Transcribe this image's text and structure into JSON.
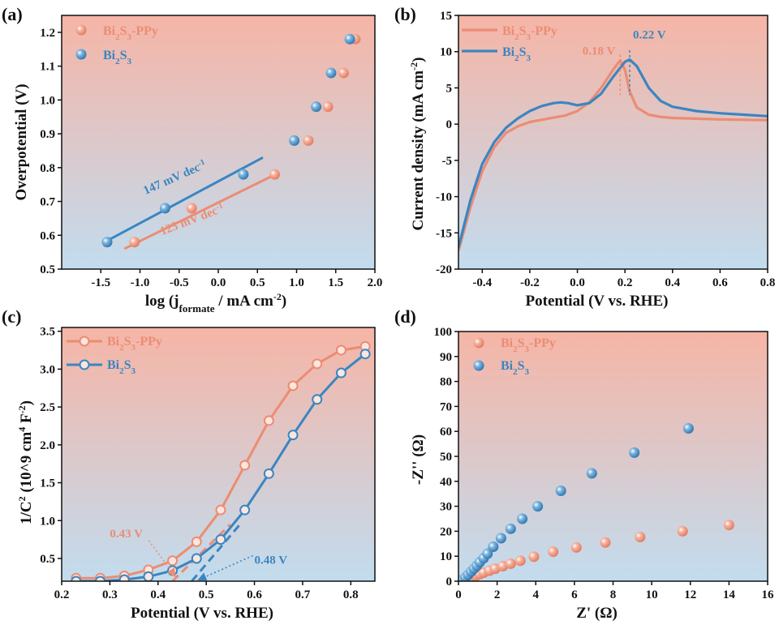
{
  "colors": {
    "orange": "#ec8c73",
    "blue": "#3a86c2",
    "bgTop": "#f6b7a8",
    "bgBottom": "#c3dcee"
  },
  "chart_data": [
    {
      "id": "a",
      "label": "(a)",
      "type": "scatter",
      "xlabel": "log (j",
      "xlabel_sub": "formate",
      "xlabel_tail": " / mA cm",
      "xlabel_sup": "-2",
      "xlabel_end": ")",
      "ylabel": "Overpotential (V)",
      "xlim": [
        -2.0,
        2.0
      ],
      "ylim": [
        0.5,
        1.25
      ],
      "xticks": [
        "-1.5",
        "-1.0",
        "-0.5",
        "0.0",
        "0.5",
        "1.0",
        "1.5",
        "2.0"
      ],
      "yticks": [
        "0.5",
        "0.6",
        "0.7",
        "0.8",
        "0.9",
        "1.0",
        "1.1",
        "1.2"
      ],
      "legend": [
        {
          "base": "Bi",
          "s1": "2",
          "mid": "S",
          "s2": "3",
          "tail": "-PPy"
        },
        {
          "base": "Bi",
          "s1": "2",
          "mid": "S",
          "s2": "3",
          "tail": ""
        }
      ],
      "series": [
        {
          "name": "Bi2S3-PPy",
          "color": "orange",
          "x": [
            -1.07,
            -0.34,
            0.72,
            1.15,
            1.4,
            1.6,
            1.75
          ],
          "y": [
            0.58,
            0.68,
            0.78,
            0.88,
            0.98,
            1.08,
            1.18
          ]
        },
        {
          "name": "Bi2S3",
          "color": "blue",
          "x": [
            -1.42,
            -0.68,
            0.32,
            0.97,
            1.25,
            1.44,
            1.68
          ],
          "y": [
            0.58,
            0.68,
            0.78,
            0.88,
            0.98,
            1.08,
            1.18
          ]
        }
      ],
      "fits": [
        {
          "color": "orange",
          "x": [
            -1.2,
            0.73
          ],
          "y": [
            0.56,
            0.78
          ]
        },
        {
          "color": "blue",
          "x": [
            -1.45,
            0.57
          ],
          "y": [
            0.58,
            0.83
          ]
        }
      ],
      "annotations": [
        {
          "text": "147 mV dec",
          "sup": "-1",
          "color": "blue",
          "x": -0.93,
          "y": 0.72,
          "angle": -24
        },
        {
          "text": "123 mV dec",
          "sup": "-1",
          "color": "orange",
          "x": -0.72,
          "y": 0.6,
          "angle": -21
        }
      ]
    },
    {
      "id": "b",
      "label": "(b)",
      "type": "line",
      "xlabel": "Potential (V vs. RHE)",
      "ylabel": "Current density (mA cm",
      "ylabel_sup": "-2",
      "ylabel_end": ")",
      "xlim": [
        -0.5,
        0.8
      ],
      "ylim": [
        -20,
        15
      ],
      "xticks": [
        "-0.4",
        "-0.2",
        "0.0",
        "0.2",
        "0.4",
        "0.6",
        "0.8"
      ],
      "yticks": [
        "-20",
        "-15",
        "-10",
        "-5",
        "0",
        "5",
        "10",
        "15"
      ],
      "legend": [
        {
          "base": "Bi",
          "s1": "2",
          "mid": "S",
          "s2": "3",
          "tail": "-PPy"
        },
        {
          "base": "Bi",
          "s1": "2",
          "mid": "S",
          "s2": "3",
          "tail": ""
        }
      ],
      "series": [
        {
          "name": "Bi2S3-PPy",
          "color": "orange",
          "x": [
            -0.5,
            -0.45,
            -0.4,
            -0.35,
            -0.3,
            -0.25,
            -0.2,
            -0.15,
            -0.1,
            -0.05,
            0.0,
            0.05,
            0.1,
            0.15,
            0.18,
            0.2,
            0.22,
            0.25,
            0.3,
            0.35,
            0.4,
            0.5,
            0.6,
            0.7,
            0.8
          ],
          "y": [
            -17.5,
            -11.5,
            -6.5,
            -3.2,
            -1.2,
            -0.3,
            0.3,
            0.6,
            0.9,
            1.2,
            1.8,
            3.0,
            5.0,
            7.5,
            8.8,
            7.5,
            4.5,
            2.3,
            1.3,
            1.0,
            0.85,
            0.75,
            0.65,
            0.6,
            0.55
          ]
        },
        {
          "name": "Bi2S3",
          "color": "blue",
          "x": [
            -0.5,
            -0.45,
            -0.4,
            -0.35,
            -0.3,
            -0.25,
            -0.2,
            -0.15,
            -0.1,
            -0.07,
            -0.04,
            0.0,
            0.05,
            0.1,
            0.15,
            0.2,
            0.22,
            0.25,
            0.3,
            0.35,
            0.4,
            0.5,
            0.6,
            0.7,
            0.8
          ],
          "y": [
            -17.0,
            -10.5,
            -5.5,
            -2.5,
            -0.5,
            0.8,
            1.8,
            2.5,
            2.9,
            3.0,
            2.9,
            2.6,
            2.9,
            4.2,
            6.5,
            8.6,
            8.9,
            8.0,
            5.0,
            3.2,
            2.4,
            1.8,
            1.5,
            1.3,
            1.1
          ]
        }
      ],
      "annotations": [
        {
          "text": "0.18 V",
          "color": "orange",
          "x": 0.18
        },
        {
          "text": "0.22 V",
          "color": "blue",
          "x": 0.22
        }
      ]
    },
    {
      "id": "c",
      "label": "(c)",
      "type": "line",
      "xlabel": "Potential (V vs. RHE)",
      "ylabel": "1/C",
      "ylabel_sup": "2",
      "ylabel_mid": " (10^9 cm",
      "ylabel_sup2": "4",
      "ylabel_mid2": " F",
      "ylabel_sup3": "-2",
      "ylabel_end": ")",
      "xlim": [
        0.2,
        0.85
      ],
      "ylim": [
        0.2,
        3.55
      ],
      "xticks": [
        "0.2",
        "0.3",
        "0.4",
        "0.5",
        "0.6",
        "0.7",
        "0.8"
      ],
      "yticks": [
        "0.5",
        "1.0",
        "1.5",
        "2.0",
        "2.5",
        "3.0",
        "3.5"
      ],
      "legend": [
        {
          "base": "Bi",
          "s1": "2",
          "mid": "S",
          "s2": "3",
          "tail": "-PPy"
        },
        {
          "base": "Bi",
          "s1": "2",
          "mid": "S",
          "s2": "3",
          "tail": ""
        }
      ],
      "series": [
        {
          "name": "Bi2S3-PPy",
          "color": "orange",
          "x": [
            0.23,
            0.28,
            0.33,
            0.38,
            0.43,
            0.48,
            0.53,
            0.58,
            0.63,
            0.68,
            0.73,
            0.78,
            0.83
          ],
          "y": [
            0.24,
            0.24,
            0.27,
            0.35,
            0.47,
            0.72,
            1.14,
            1.73,
            2.32,
            2.78,
            3.07,
            3.25,
            3.3
          ]
        },
        {
          "name": "Bi2S3",
          "color": "blue",
          "x": [
            0.23,
            0.28,
            0.33,
            0.38,
            0.43,
            0.48,
            0.53,
            0.58,
            0.63,
            0.68,
            0.73,
            0.78,
            0.83
          ],
          "y": [
            0.2,
            0.2,
            0.22,
            0.26,
            0.34,
            0.5,
            0.75,
            1.14,
            1.62,
            2.13,
            2.6,
            2.95,
            3.2
          ]
        }
      ],
      "fits": [
        {
          "color": "orange",
          "x": [
            0.43,
            0.55
          ],
          "y": [
            0.2,
            0.95
          ],
          "dashed": true
        },
        {
          "color": "blue",
          "x": [
            0.47,
            0.57
          ],
          "y": [
            0.2,
            0.95
          ],
          "dashed": true
        }
      ],
      "annotations": [
        {
          "text": "0.43 V",
          "color": "orange",
          "x": 0.3,
          "y": 0.78,
          "tx": 0.43,
          "ty": 0.27
        },
        {
          "text": "0.48 V",
          "color": "blue",
          "x": 0.6,
          "y": 0.43,
          "tx": 0.48,
          "ty": 0.22
        }
      ]
    },
    {
      "id": "d",
      "label": "(d)",
      "type": "scatter",
      "xlabel": "Z' (Ω)",
      "ylabel": "-Z'' (Ω)",
      "xlim": [
        0,
        16
      ],
      "ylim": [
        0,
        100
      ],
      "xticks": [
        "0",
        "2",
        "4",
        "6",
        "8",
        "10",
        "12",
        "14",
        "16"
      ],
      "yticks": [
        "0",
        "10",
        "20",
        "30",
        "40",
        "50",
        "60",
        "70",
        "80",
        "90",
        "100"
      ],
      "legend": [
        {
          "base": "Bi",
          "s1": "2",
          "mid": "S",
          "s2": "3",
          "tail": "-PPy"
        },
        {
          "base": "Bi",
          "s1": "2",
          "mid": "S",
          "s2": "3",
          "tail": ""
        }
      ],
      "series": [
        {
          "name": "Bi2S3-PPy",
          "color": "orange",
          "x": [
            0.3,
            0.5,
            0.7,
            0.9,
            1.1,
            1.3,
            1.6,
            1.9,
            2.3,
            2.7,
            3.2,
            3.9,
            4.9,
            6.1,
            7.6,
            9.4,
            11.6,
            14.0
          ],
          "y": [
            0.4,
            1.0,
            1.6,
            2.2,
            2.8,
            3.4,
            4.2,
            5.0,
            6.0,
            7.0,
            8.2,
            9.8,
            11.8,
            13.5,
            15.5,
            17.7,
            20.0,
            22.5
          ]
        },
        {
          "name": "Bi2S3",
          "color": "blue",
          "x": [
            0.2,
            0.35,
            0.5,
            0.65,
            0.8,
            0.95,
            1.1,
            1.3,
            1.5,
            1.8,
            2.2,
            2.7,
            3.3,
            4.1,
            5.3,
            6.9,
            9.1,
            11.9
          ],
          "y": [
            0.5,
            1.5,
            2.6,
            3.8,
            5.0,
            6.2,
            7.6,
            9.2,
            11.0,
            13.8,
            17.2,
            21.0,
            25.0,
            30.0,
            36.2,
            43.2,
            51.5,
            61.2
          ]
        }
      ]
    }
  ]
}
